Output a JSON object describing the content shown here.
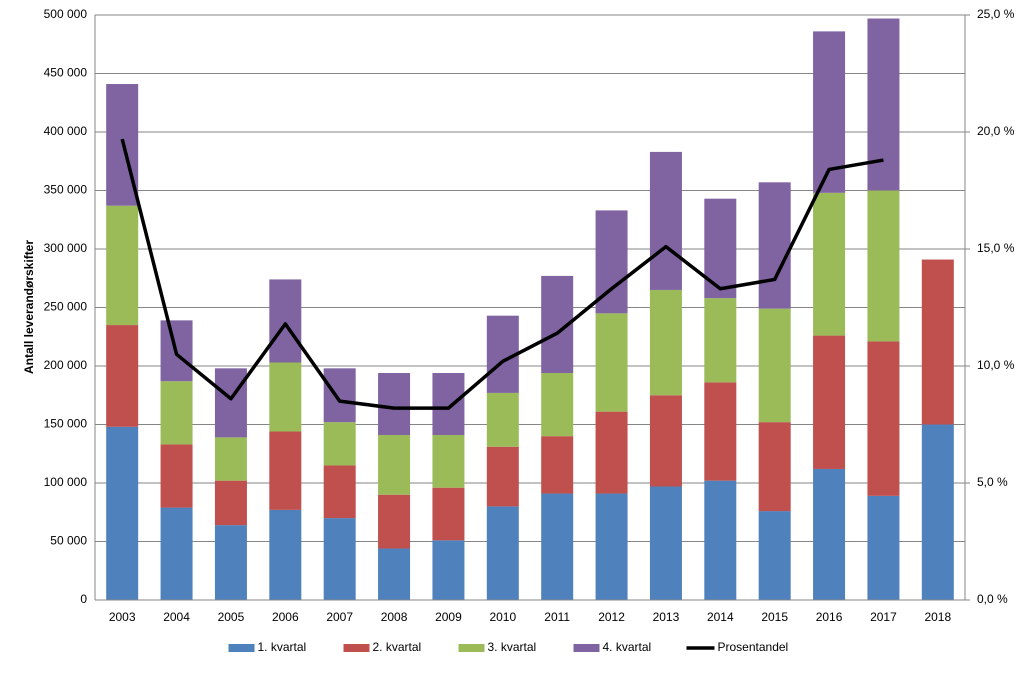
{
  "chart_data": {
    "type": "bar",
    "stacked": true,
    "ylabel": "Antall leverandørskifter",
    "categories": [
      "2003",
      "2004",
      "2005",
      "2006",
      "2007",
      "2008",
      "2009",
      "2010",
      "2011",
      "2012",
      "2013",
      "2014",
      "2015",
      "2016",
      "2017",
      "2018"
    ],
    "series": [
      {
        "name": "1. kvartal",
        "color": "#4f81bd",
        "values": [
          148000,
          79000,
          64000,
          77000,
          70000,
          44000,
          51000,
          80000,
          91000,
          91000,
          97000,
          102000,
          76000,
          112000,
          89000,
          150000
        ]
      },
      {
        "name": "2. kvartal",
        "color": "#c0504d",
        "values": [
          87000,
          54000,
          38000,
          67000,
          45000,
          46000,
          45000,
          51000,
          49000,
          70000,
          78000,
          84000,
          76000,
          114000,
          132000,
          141000
        ]
      },
      {
        "name": "3. kvartal",
        "color": "#9bbb59",
        "values": [
          102000,
          54000,
          37000,
          59000,
          37000,
          51000,
          45000,
          46000,
          54000,
          84000,
          90000,
          72000,
          97000,
          122000,
          129000,
          null
        ]
      },
      {
        "name": "4. kvartal",
        "color": "#8064a2",
        "values": [
          104000,
          52000,
          59000,
          71000,
          46000,
          53000,
          53000,
          66000,
          83000,
          88000,
          118000,
          85000,
          108000,
          138000,
          147000,
          null
        ]
      },
      {
        "name": "Prosentandel",
        "color": "#000000",
        "type": "line",
        "axis": "y2",
        "values": [
          19.7,
          10.5,
          8.6,
          11.8,
          8.5,
          8.2,
          8.2,
          10.2,
          11.4,
          13.3,
          15.1,
          13.3,
          13.7,
          18.4,
          18.8,
          null
        ]
      }
    ],
    "ylim": [
      0,
      500000
    ],
    "yticks": [
      0,
      {
        "value": 50000,
        "label": "50 000"
      },
      {
        "value": 100000,
        "label": "100 000"
      },
      {
        "value": 150000,
        "label": "150 000"
      },
      {
        "value": 200000,
        "label": "200 000"
      },
      {
        "value": 250000,
        "label": "250 000"
      },
      {
        "value": 300000,
        "label": "300 000"
      },
      {
        "value": 350000,
        "label": "350 000"
      },
      {
        "value": 400000,
        "label": "400 000"
      },
      {
        "value": 450000,
        "label": "450 000"
      },
      {
        "value": 500000,
        "label": "500 000"
      }
    ],
    "y2lim": [
      0,
      25
    ],
    "y2ticks": [
      {
        "value": 0,
        "label": "0,0 %"
      },
      {
        "value": 5,
        "label": "5,0 %"
      },
      {
        "value": 10,
        "label": "10,0 %"
      },
      {
        "value": 15,
        "label": "15,0 %"
      },
      {
        "value": 20,
        "label": "20,0 %"
      },
      {
        "value": 25,
        "label": "25,0 %"
      }
    ],
    "grid": true,
    "legend": "bottom"
  }
}
